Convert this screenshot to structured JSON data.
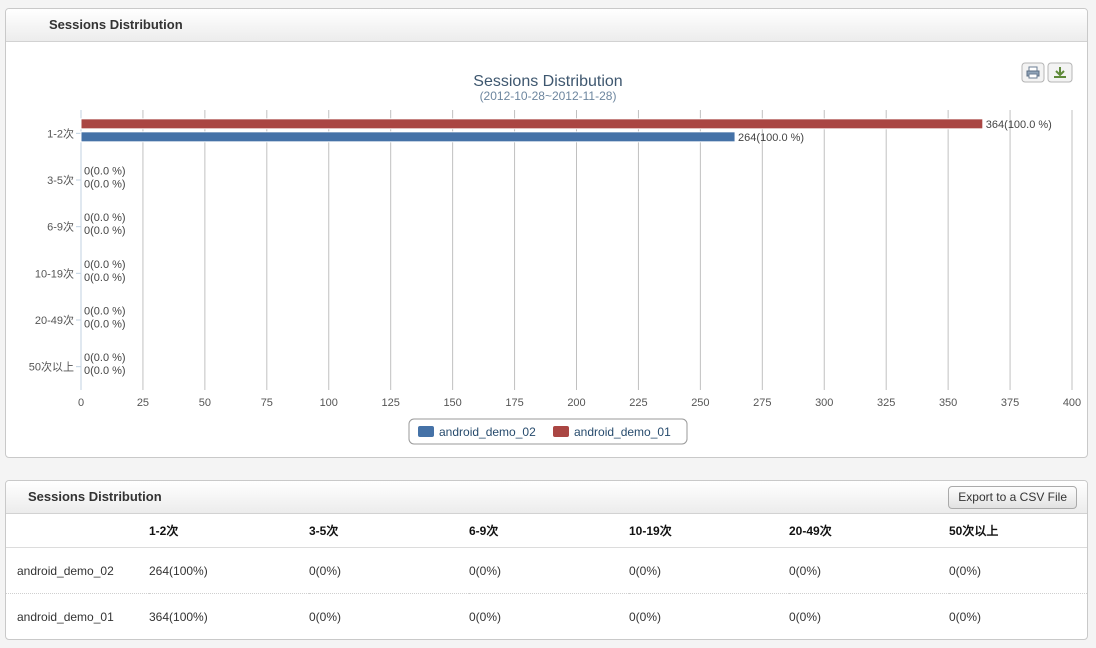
{
  "panel_top": {
    "title": "Sessions Distribution"
  },
  "panel_bottom": {
    "title": "Sessions Distribution",
    "export_label": "Export to a CSV File"
  },
  "toolbar_icons": [
    "print-icon",
    "download-icon"
  ],
  "chart_data": {
    "type": "bar",
    "orientation": "horizontal",
    "title": "Sessions Distribution",
    "subtitle": "(2012-10-28~2012-11-28)",
    "categories": [
      "1-2次",
      "3-5次",
      "6-9次",
      "10-19次",
      "20-49次",
      "50次以上"
    ],
    "series": [
      {
        "name": "android_demo_01",
        "color": "#aa4643",
        "values": [
          364,
          0,
          0,
          0,
          0,
          0
        ],
        "labels": [
          "364(100.0 %)",
          "0(0.0 %)",
          "0(0.0 %)",
          "0(0.0 %)",
          "0(0.0 %)",
          "0(0.0 %)"
        ]
      },
      {
        "name": "android_demo_02",
        "color": "#4572a7",
        "values": [
          264,
          0,
          0,
          0,
          0,
          0
        ],
        "labels": [
          "264(100.0 %)",
          "0(0.0 %)",
          "0(0.0 %)",
          "0(0.0 %)",
          "0(0.0 %)",
          "0(0.0 %)"
        ]
      }
    ],
    "xlim": [
      0,
      400
    ],
    "ticks": [
      0,
      25,
      50,
      75,
      100,
      125,
      150,
      175,
      200,
      225,
      250,
      275,
      300,
      325,
      350,
      375,
      400
    ],
    "grid": true,
    "legend": {
      "placement": "bottom-center",
      "order": [
        "android_demo_02",
        "android_demo_01"
      ]
    }
  },
  "table": {
    "headers": [
      "",
      "1-2次",
      "3-5次",
      "6-9次",
      "10-19次",
      "20-49次",
      "50次以上"
    ],
    "rows": [
      [
        "android_demo_02",
        "264(100%)",
        "0(0%)",
        "0(0%)",
        "0(0%)",
        "0(0%)",
        "0(0%)"
      ],
      [
        "android_demo_01",
        "364(100%)",
        "0(0%)",
        "0(0%)",
        "0(0%)",
        "0(0%)",
        "0(0%)"
      ]
    ]
  }
}
